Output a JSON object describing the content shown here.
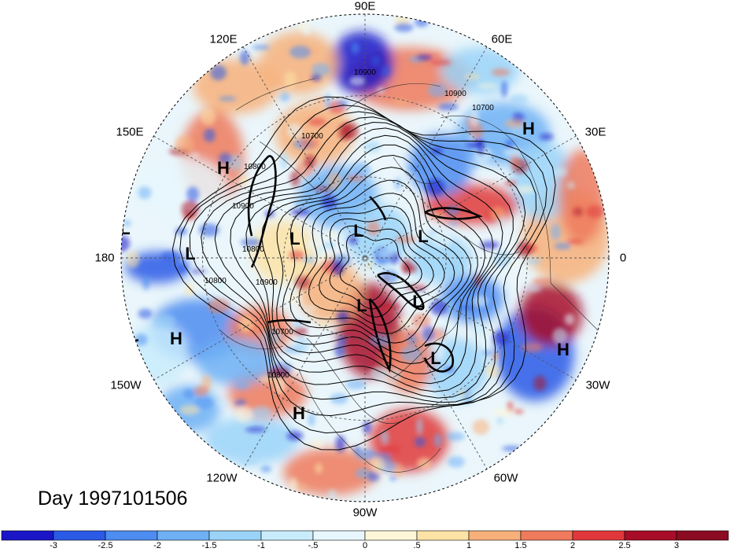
{
  "title": "Day 1997101506",
  "longitude_labels": [
    "90E",
    "60E",
    "30E",
    "0",
    "30W",
    "60W",
    "90W",
    "120W",
    "150W",
    "180",
    "150E",
    "120E"
  ],
  "colorbar": {
    "ticks": [
      "-3",
      "-2.5",
      "-2",
      "-1.5",
      "-1",
      "-.5",
      "0",
      ".5",
      "1",
      "1.5",
      "2",
      "2.5",
      "3"
    ],
    "colors": [
      "#1a16c8",
      "#2a5ae6",
      "#4d8cf0",
      "#6fb0f5",
      "#9bd3f8",
      "#c8ecfb",
      "#e8f7fd",
      "#fdf7d8",
      "#fde3a6",
      "#f7b07a",
      "#ef7a5c",
      "#e0383a",
      "#a80d28"
    ]
  },
  "contour_labels": [
    "10900",
    "10800",
    "10700",
    "10900",
    "10800",
    "10900",
    "10700",
    "10800",
    "10900",
    "10700",
    "10800"
  ],
  "pressure_centers": [
    "H",
    "H",
    "H",
    "H",
    "H",
    "L",
    "L",
    "L",
    "L",
    "L",
    "L",
    "L",
    "L",
    "L"
  ]
}
